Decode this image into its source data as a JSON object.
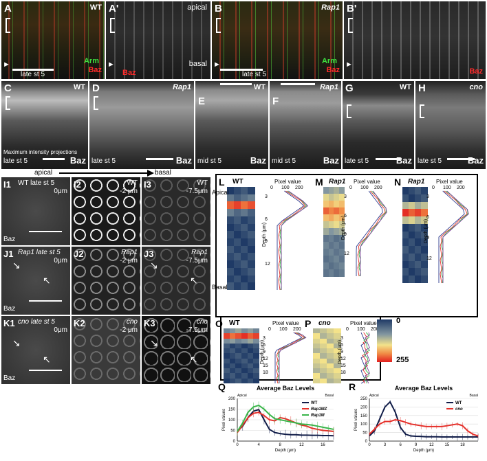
{
  "colors": {
    "arm_green": "#3fe03f",
    "baz_red": "#ff2b2b",
    "heat_low": "#1f3a66",
    "heat_mid": "#f3e28a",
    "heat_high": "#e21f1f",
    "wt_line": "#101c48",
    "rap1mz_line": "#e5302a",
    "rap1m_line": "#39b54a",
    "cno_line": "#e5302a"
  },
  "top": {
    "A": {
      "label": "A",
      "genotype": "WT",
      "stage": "late st 5",
      "marker1": "Arm",
      "marker2": "Baz"
    },
    "A2": {
      "label": "A'",
      "apical": "apical",
      "basal": "basal",
      "marker": "Baz"
    },
    "B": {
      "label": "B",
      "genotype": "Rap1",
      "stage": "late st 5",
      "marker1": "Arm",
      "marker2": "Baz"
    },
    "B2": {
      "label": "B'",
      "marker": "Baz"
    }
  },
  "mid": {
    "C": {
      "label": "C",
      "genotype": "WT",
      "note": "Maximum intensity projections",
      "stage": "late st 5",
      "marker": "Baz"
    },
    "D": {
      "label": "D",
      "genotype": "Rap1",
      "stage": "late st 5",
      "marker": "Baz"
    },
    "E": {
      "label": "E",
      "genotype": "WT",
      "stage": "mid st 5",
      "marker": "Baz"
    },
    "F": {
      "label": "F",
      "genotype": "Rap1",
      "stage": "mid st 5",
      "marker": "Baz"
    },
    "G": {
      "label": "G",
      "genotype": "WT",
      "stage": "late st 5",
      "marker": "Baz"
    },
    "H": {
      "label": "H",
      "genotype": "cno",
      "stage": "late st 5",
      "marker": "Baz"
    }
  },
  "axis_arrow": {
    "apical": "apical",
    "basal": "basal"
  },
  "grid": {
    "I1": {
      "label": "I1",
      "title": "WT late st 5",
      "depth": "0μm",
      "marker": "Baz"
    },
    "I2": {
      "label": "I2",
      "title": "WT",
      "depth": "-2 μm"
    },
    "I3": {
      "label": "I3",
      "title": "WT",
      "depth": "-7.5μm"
    },
    "J1": {
      "label": "J1",
      "title": "Rap1 late st 5",
      "depth": "0μm",
      "marker": "Baz"
    },
    "J2": {
      "label": "J2",
      "title": "Rap1",
      "depth": "-2 μm"
    },
    "J3": {
      "label": "J3",
      "title": "Rap1",
      "depth": "-7.5μm"
    },
    "K1": {
      "label": "K1",
      "title": "cno late st 5",
      "depth": "0μm",
      "marker": "Baz"
    },
    "K2": {
      "label": "K2",
      "title": "cno",
      "depth": "-2 μm"
    },
    "K3": {
      "label": "K3",
      "title": "cno",
      "depth": "-7.5μm"
    }
  },
  "heatmaps": {
    "L": {
      "label": "L",
      "genotype": "WT",
      "apical": "Apical",
      "basal": "Basal",
      "ylabel": "Depth (μm)",
      "pixel_label": "Pixel value",
      "ticks_x": [
        "100",
        "200"
      ],
      "ticks_y": [
        "3",
        "6",
        "9",
        "12"
      ],
      "zero": "0"
    },
    "M": {
      "label": "M",
      "genotype": "Rap1",
      "sup": "MZ",
      "pixel_label": "Pixel value",
      "ticks_x": [
        "100",
        "200"
      ],
      "ticks_y": [
        "3",
        "6",
        "9",
        "12"
      ],
      "ylabel": "Depth (μm)",
      "zero": "0"
    },
    "N": {
      "label": "N",
      "genotype": "Rap1",
      "sup": "M",
      "pixel_label": "Pixel value",
      "ticks_x": [
        "100",
        "200"
      ],
      "ticks_y": [
        "3",
        "6",
        "9",
        "12"
      ],
      "ylabel": "Depth (μm)",
      "zero": "0"
    },
    "O": {
      "label": "O",
      "genotype": "WT",
      "pixel_label": "Pixel value",
      "ticks_x": [
        "100",
        "200"
      ],
      "ticks_y": [
        "3",
        "6",
        "9",
        "12",
        "15",
        "18"
      ],
      "ylabel": "Depth (μm)",
      "zero": "0"
    },
    "P": {
      "label": "P",
      "genotype": "cno",
      "pixel_label": "Pixel value",
      "ticks_x": [
        "100",
        "200"
      ],
      "ticks_y": [
        "3",
        "6",
        "9",
        "12",
        "15",
        "18"
      ],
      "ylabel": "Depth (μm)",
      "zero": "0"
    },
    "colorbar": {
      "min": "0",
      "max": "255"
    }
  },
  "chart_data": [
    {
      "type": "line",
      "label": "Q",
      "title": "Average Baz Levels",
      "xlabel": "Depth (μm)",
      "ylabel": "Pixel values",
      "apical": "Apical",
      "basal": "Basal",
      "xlim": [
        0,
        18
      ],
      "ylim": [
        0,
        200
      ],
      "xticks": [
        0,
        4,
        8,
        12,
        16
      ],
      "yticks": [
        0,
        50,
        100,
        150,
        200
      ],
      "x": [
        0,
        1,
        2,
        3,
        4,
        5,
        6,
        7,
        8,
        9,
        10,
        11,
        12,
        13,
        14,
        15,
        16,
        17,
        18
      ],
      "series": [
        {
          "name": "WT",
          "values": [
            45,
            70,
            110,
            140,
            148,
            100,
            55,
            40,
            35,
            32,
            30,
            30,
            28,
            28,
            27,
            27,
            26,
            26,
            25
          ]
        },
        {
          "name": "Rap1MZ",
          "values": [
            40,
            75,
            110,
            130,
            135,
            120,
            100,
            95,
            110,
            105,
            95,
            85,
            75,
            70,
            60,
            55,
            50,
            48,
            45
          ]
        },
        {
          "name": "Rap1M",
          "values": [
            45,
            85,
            135,
            160,
            168,
            150,
            125,
            105,
            100,
            95,
            90,
            85,
            80,
            78,
            75,
            70,
            65,
            60,
            55
          ]
        }
      ],
      "legend": "top-right"
    },
    {
      "type": "line",
      "label": "R",
      "title": "Average Baz Levels",
      "xlabel": "Depth (μm)",
      "ylabel": "Pixel values",
      "apical": "Apical",
      "basal": "Basal",
      "xlim": [
        0,
        21
      ],
      "ylim": [
        0,
        250
      ],
      "xticks": [
        0,
        3,
        6,
        9,
        12,
        15,
        18
      ],
      "yticks": [
        0,
        50,
        100,
        150,
        200,
        250
      ],
      "x": [
        0,
        1,
        2,
        3,
        4,
        5,
        6,
        7,
        8,
        9,
        10,
        11,
        12,
        13,
        14,
        15,
        16,
        17,
        18,
        19,
        20,
        21
      ],
      "series": [
        {
          "name": "WT",
          "values": [
            30,
            60,
            130,
            200,
            230,
            170,
            80,
            40,
            30,
            28,
            27,
            25,
            25,
            25,
            24,
            24,
            24,
            24,
            24,
            24,
            24,
            24
          ]
        },
        {
          "name": "cno",
          "values": [
            40,
            70,
            100,
            115,
            115,
            125,
            120,
            110,
            100,
            95,
            90,
            85,
            85,
            85,
            85,
            90,
            95,
            100,
            90,
            60,
            40,
            30
          ]
        }
      ],
      "legend": "top-right"
    }
  ]
}
